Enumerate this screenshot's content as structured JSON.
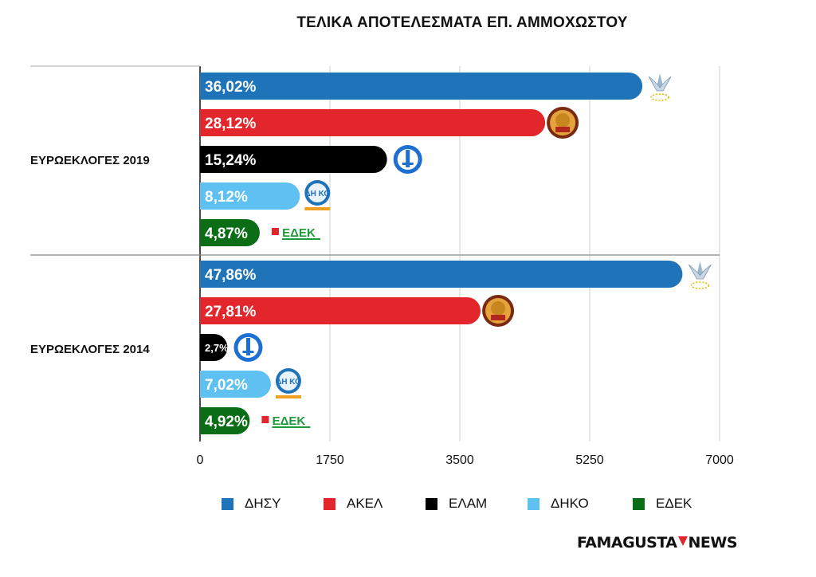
{
  "chart_data": {
    "type": "bar",
    "orientation": "horizontal",
    "title": "ΤΕΛΙΚΑ ΑΠΟΤΕΛΕΣΜΑΤΑ ΕΠ. ΑΜΜΟΧΩΣΤΟΥ",
    "xlim": [
      0,
      7000
    ],
    "x_ticks": [
      "0",
      "1750",
      "3500",
      "5250",
      "7000"
    ],
    "grid": true,
    "legend_position": "bottom",
    "groups": [
      {
        "label": "ΕΥΡΩΕΚΛΟΓΕΣ 2019",
        "bars": [
          {
            "party": "ΔΗΣΥ",
            "value": 5960,
            "label": "36,02%"
          },
          {
            "party": "ΑΚΕΛ",
            "value": 4650,
            "label": "28,12%"
          },
          {
            "party": "ΕΛΑΜ",
            "value": 2520,
            "label": "15,24%"
          },
          {
            "party": "ΔΗΚΟ",
            "value": 1345,
            "label": "8,12%"
          },
          {
            "party": "ΕΔΕΚ",
            "value": 805,
            "label": "4,87%"
          }
        ]
      },
      {
        "label": "ΕΥΡΩΕΚΛΟΓΕΣ 2014",
        "bars": [
          {
            "party": "ΔΗΣΥ",
            "value": 6500,
            "label": "47,86%"
          },
          {
            "party": "ΑΚΕΛ",
            "value": 3780,
            "label": "27,81%"
          },
          {
            "party": "ΕΛΑΜ",
            "value": 370,
            "label": "2,7%"
          },
          {
            "party": "ΔΗΚΟ",
            "value": 955,
            "label": "7,02%"
          },
          {
            "party": "ΕΔΕΚ",
            "value": 670,
            "label": "4,92%"
          }
        ]
      }
    ],
    "series": [
      {
        "name": "ΔΗΣΥ",
        "color": "#1f74b9",
        "logo": "disy-logo-icon"
      },
      {
        "name": "ΑΚΕΛ",
        "color": "#e3262b",
        "logo": "akel-logo-icon"
      },
      {
        "name": "ΕΛΑΜ",
        "color": "#000000",
        "logo": "elam-logo-icon"
      },
      {
        "name": "ΔΗΚΟ",
        "color": "#5ec1f2",
        "logo": "diko-logo-icon"
      },
      {
        "name": "ΕΔΕΚ",
        "color": "#0b6e16",
        "logo": "edek-logo-icon"
      }
    ]
  },
  "logo_text": {
    "diko": "ΔΗ ΚΟ",
    "edek": "ΕΔΕΚ"
  },
  "brand": {
    "left": "FAMAGUSTA",
    "right": "NEWS",
    "accent": "#e3262b"
  }
}
